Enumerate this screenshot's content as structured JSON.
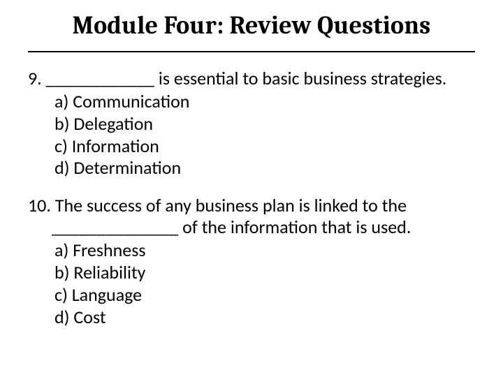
{
  "slide": {
    "title": "Module Four: Review Questions",
    "background_color": "#ffffff",
    "text_color": "#000000",
    "title_font": "Cambria",
    "body_font": "Calibri",
    "title_fontsize": 36,
    "body_fontsize": 26,
    "divider_color": "#000000"
  },
  "questions": [
    {
      "number": "9.",
      "stem": "9. ____________ is essential to basic business strategies.",
      "options": {
        "a": "a) Communication",
        "b": "b) Delegation",
        "c": "c) Information",
        "d": "d) Determination"
      }
    },
    {
      "number": "10.",
      "stem": "10. The success of any business plan is linked to the ______________ of the information that is used.",
      "options": {
        "a": "a) Freshness",
        "b": "b) Reliability",
        "c": "c) Language",
        "d": "d) Cost"
      }
    }
  ]
}
